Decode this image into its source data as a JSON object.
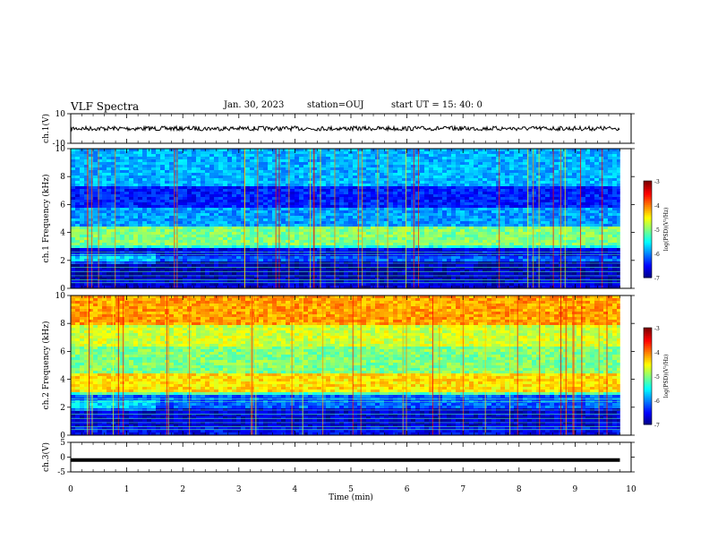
{
  "header": {
    "title": "VLF Spectra",
    "date": "Jan. 30, 2023",
    "station": "station=OUJ",
    "start": "start UT =  15: 40: 0"
  },
  "colors": {
    "background": "#ffffff",
    "axis": "#000000",
    "colormap": [
      "#00007f",
      "#0000ff",
      "#007fff",
      "#00ffff",
      "#7fff7f",
      "#ffff00",
      "#ff7f00",
      "#ff0000",
      "#7f0000"
    ]
  },
  "chart_data": [
    {
      "type": "line",
      "panel": "ch1-waveform",
      "ylabel": "ch.1(V)",
      "ylim": [
        -10,
        10
      ],
      "yticks": [
        "10",
        "-10"
      ],
      "series": [
        {
          "values": [
            0,
            0
          ],
          "x": [
            0,
            9.8
          ]
        }
      ]
    },
    {
      "type": "heatmap",
      "panel": "ch1-spectrogram",
      "ylabel": "ch.1 Frequency (kHz)",
      "ylim": [
        0,
        10
      ],
      "yticks": [
        "0",
        "2",
        "4",
        "6",
        "8",
        "10"
      ],
      "data_end_min": 9.8,
      "colorbar": {
        "label": "log(PSD)(V²/Hz)",
        "range": [
          -7,
          -3
        ],
        "ticks": [
          "-3",
          "-4",
          "-5",
          "-6",
          "-7"
        ]
      },
      "bands": [
        {
          "f": [
            0,
            0.6
          ],
          "level": 0.08
        },
        {
          "f": [
            0.6,
            2.0
          ],
          "level": 0.05
        },
        {
          "f": [
            2.0,
            2.4
          ],
          "level": 0.22
        },
        {
          "f": [
            2.4,
            2.9
          ],
          "level": 0.1
        },
        {
          "f": [
            2.9,
            3.2
          ],
          "level": 0.4
        },
        {
          "f": [
            3.2,
            4.6
          ],
          "level": 0.5
        },
        {
          "f": [
            4.6,
            5.8
          ],
          "level": 0.28
        },
        {
          "f": [
            5.8,
            7.5
          ],
          "level": 0.15
        },
        {
          "f": [
            7.5,
            10
          ],
          "level": 0.3
        }
      ]
    },
    {
      "type": "heatmap",
      "panel": "ch2-spectrogram",
      "ylabel": "ch.2 Frequency (kHz)",
      "ylim": [
        0,
        10
      ],
      "yticks": [
        "0",
        "2",
        "4",
        "6",
        "8",
        "10"
      ],
      "data_end_min": 9.8,
      "colorbar": {
        "label": "log(PSD)(V²/Hz)",
        "range": [
          -7,
          -3
        ],
        "ticks": [
          "-3",
          "-4",
          "-5",
          "-6",
          "-7"
        ]
      },
      "bands": [
        {
          "f": [
            0,
            0.6
          ],
          "level": 0.12
        },
        {
          "f": [
            0.6,
            2.0
          ],
          "level": 0.08
        },
        {
          "f": [
            2.0,
            2.9
          ],
          "level": 0.22
        },
        {
          "f": [
            2.9,
            3.2
          ],
          "level": 0.45
        },
        {
          "f": [
            3.2,
            4.6
          ],
          "level": 0.65
        },
        {
          "f": [
            4.6,
            6.5
          ],
          "level": 0.5
        },
        {
          "f": [
            6.5,
            8.0
          ],
          "level": 0.58
        },
        {
          "f": [
            8.0,
            10
          ],
          "level": 0.72
        }
      ]
    },
    {
      "type": "line",
      "panel": "ch3-waveform",
      "ylabel": "ch.3(V)",
      "xlabel": "Time (min)",
      "ylim": [
        -5,
        5
      ],
      "yticks": [
        "5",
        "0",
        "-5"
      ],
      "xlim": [
        0,
        10
      ],
      "xticks": [
        "0",
        "1",
        "2",
        "3",
        "4",
        "5",
        "6",
        "7",
        "8",
        "9",
        "10"
      ],
      "series": [
        {
          "values": [
            -1,
            -1
          ],
          "x": [
            0,
            9.8
          ]
        }
      ]
    }
  ]
}
